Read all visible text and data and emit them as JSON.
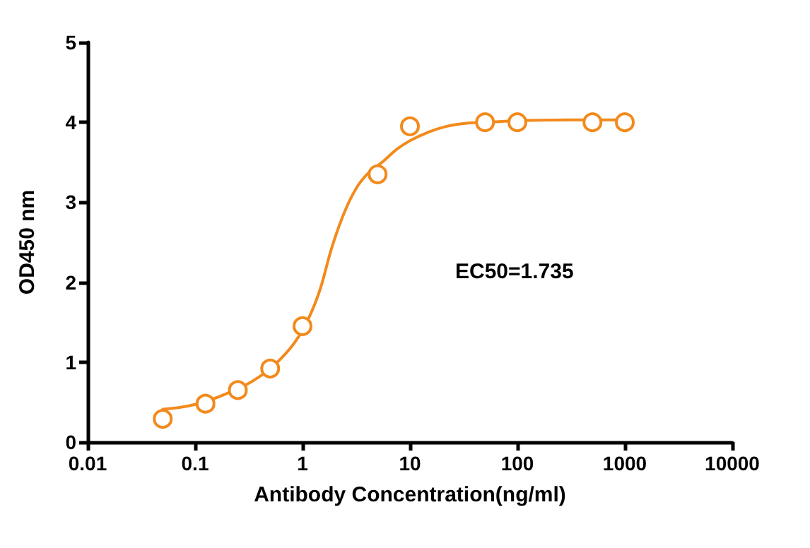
{
  "chart_data": {
    "type": "scatter",
    "xlabel": "Antibody Concentration(ng/ml)",
    "ylabel": "OD450 nm",
    "log": "x",
    "xlim": [
      0.01,
      10000
    ],
    "xticks": [
      0.01,
      0.1,
      1,
      10,
      100,
      1000,
      10000
    ],
    "ylim": [
      0,
      5
    ],
    "yticks": [
      0,
      1,
      2,
      3,
      4,
      5
    ],
    "grid": false,
    "marker": "circle",
    "annotations": [
      "EC50=1.735"
    ],
    "series": [
      {
        "color": "#f28a1c",
        "x": [
          0.05,
          0.125,
          0.25,
          0.5,
          1,
          5,
          10,
          50,
          100,
          500,
          1000
        ],
        "values": [
          0.29,
          0.48,
          0.65,
          0.92,
          1.45,
          3.35,
          3.95,
          4.0,
          4.0,
          4.0,
          4.0
        ]
      },
      {
        "type": "line",
        "marker": "none",
        "line_style": "solid",
        "color": "#f28a1c",
        "x": [
          0.05,
          0.1,
          0.2,
          0.4,
          0.7,
          1,
          1.4,
          1.9,
          2.5,
          3.25,
          4.2,
          5.5,
          7.5,
          10,
          15,
          22,
          35,
          52,
          100,
          300,
          1000
        ],
        "values": [
          0.41,
          0.47,
          0.61,
          0.82,
          1.11,
          1.4,
          1.84,
          2.46,
          2.9,
          3.2,
          3.38,
          3.5,
          3.66,
          3.77,
          3.88,
          3.95,
          3.99,
          4.0,
          4.02,
          4.03,
          4.03
        ]
      }
    ]
  }
}
